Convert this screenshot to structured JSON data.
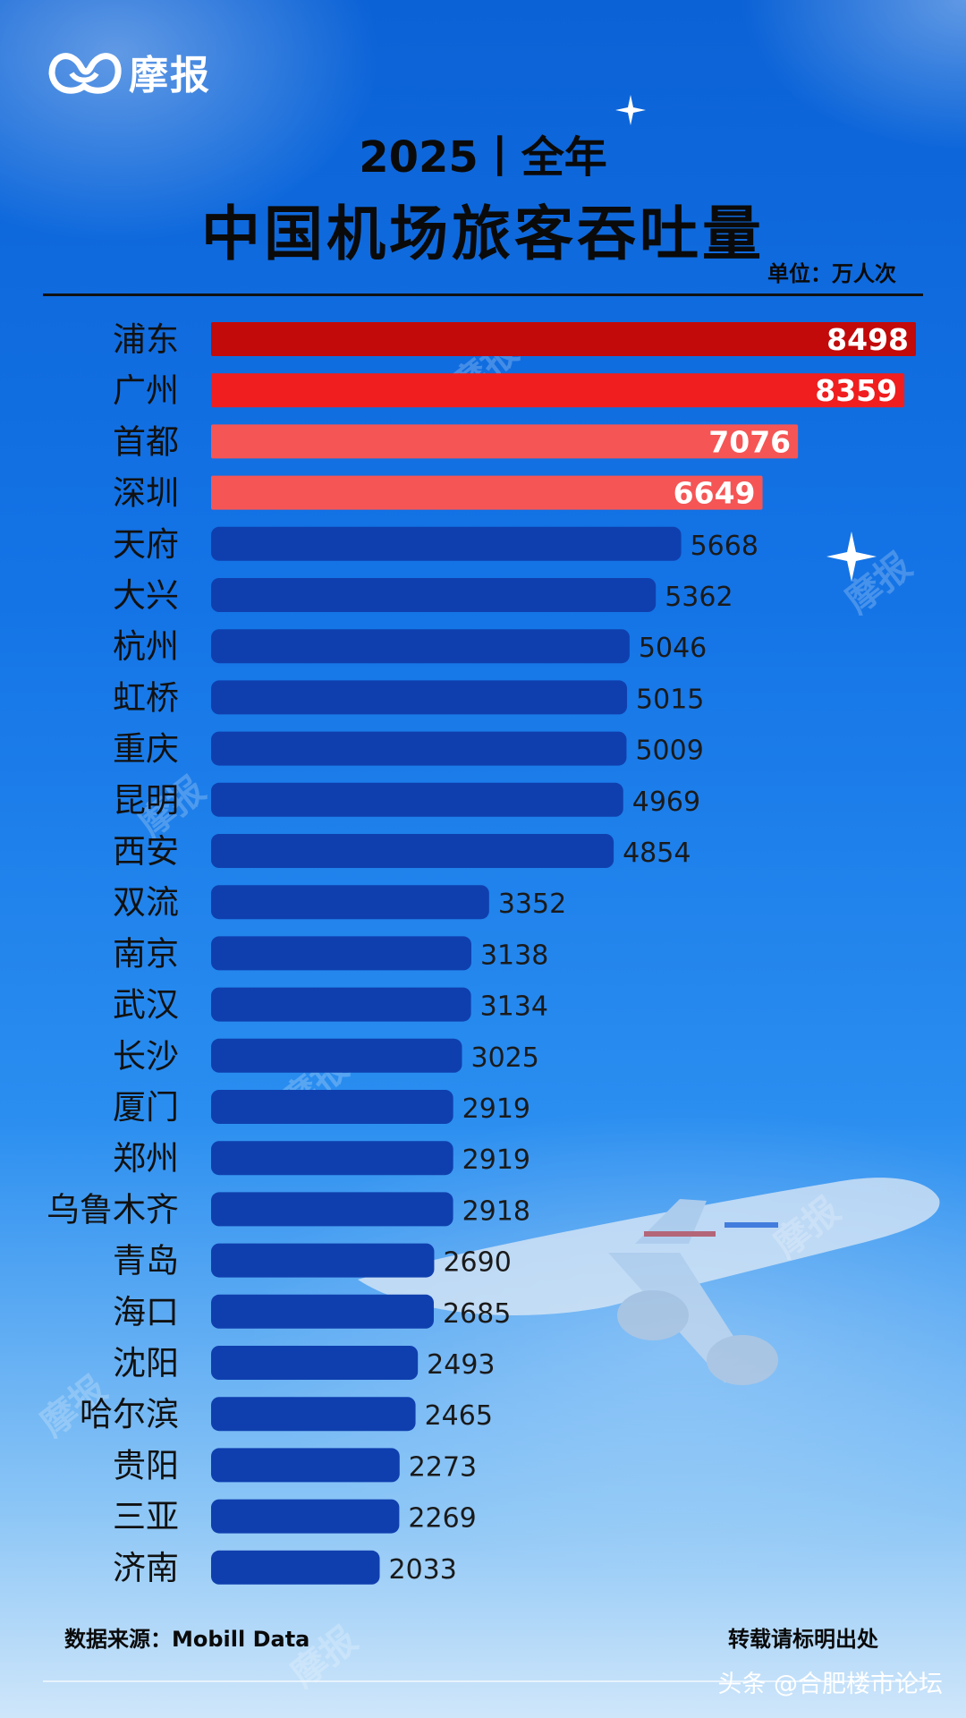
{
  "brand": {
    "name": "摩报"
  },
  "header": {
    "year_line": "2025丨全年",
    "title": "中国机场旅客吞吐量",
    "unit": "单位：万人次"
  },
  "colors": {
    "top1": "#c20a0a",
    "top2": "#f01e1e",
    "top3": "#f55555",
    "top4": "#f55555",
    "rest": "#0f3fae"
  },
  "chart_data": {
    "type": "bar",
    "orientation": "horizontal",
    "title": "中国机场旅客吞吐量",
    "unit": "万人次",
    "categories": [
      "浦东",
      "广州",
      "首都",
      "深圳",
      "天府",
      "大兴",
      "杭州",
      "虹桥",
      "重庆",
      "昆明",
      "西安",
      "双流",
      "南京",
      "武汉",
      "长沙",
      "厦门",
      "郑州",
      "乌鲁木齐",
      "青岛",
      "海口",
      "沈阳",
      "哈尔滨",
      "贵阳",
      "三亚",
      "济南"
    ],
    "values": [
      8498,
      8359,
      7076,
      6649,
      5668,
      5362,
      5046,
      5015,
      5009,
      4969,
      4854,
      3352,
      3138,
      3134,
      3025,
      2919,
      2919,
      2918,
      2690,
      2685,
      2493,
      2465,
      2273,
      2269,
      2033
    ],
    "xlim": [
      0,
      8498
    ],
    "grid": false,
    "legend": "none"
  },
  "footer": {
    "source": "数据来源：Mobill Data",
    "repost": "转载请标明出处",
    "handle": "头条 @合肥楼市论坛"
  }
}
